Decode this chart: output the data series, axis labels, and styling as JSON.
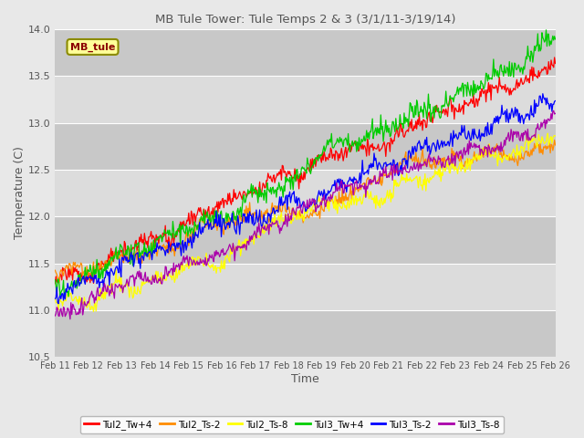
{
  "title": "MB Tule Tower: Tule Temps 2 & 3 (3/1/11-3/19/14)",
  "xlabel": "Time",
  "ylabel": "Temperature (C)",
  "ylim": [
    10.5,
    14.0
  ],
  "xlim": [
    0,
    15
  ],
  "xtick_labels": [
    "Feb 11",
    "Feb 12",
    "Feb 13",
    "Feb 14",
    "Feb 15",
    "Feb 16",
    "Feb 17",
    "Feb 18",
    "Feb 19",
    "Feb 20",
    "Feb 21",
    "Feb 22",
    "Feb 23",
    "Feb 24",
    "Feb 25",
    "Feb 26"
  ],
  "ytick_values": [
    10.5,
    11.0,
    11.5,
    12.0,
    12.5,
    13.0,
    13.5,
    14.0
  ],
  "series": [
    {
      "name": "Tul2_Tw+4",
      "color": "#FF0000"
    },
    {
      "name": "Tul2_Ts-2",
      "color": "#FF8C00"
    },
    {
      "name": "Tul2_Ts-8",
      "color": "#FFFF00"
    },
    {
      "name": "Tul3_Tw+4",
      "color": "#00CC00"
    },
    {
      "name": "Tul3_Ts-2",
      "color": "#0000FF"
    },
    {
      "name": "Tul3_Ts-8",
      "color": "#AA00AA"
    }
  ],
  "legend_box_facecolor": "#FFFF99",
  "legend_box_edgecolor": "#8B8B00",
  "legend_text": "MB_tule",
  "legend_text_color": "#8B0000",
  "fig_bgcolor": "#E8E8E8",
  "axes_bgcolor": "#E8E8E8",
  "band_light": "#DCDCDC",
  "band_dark": "#C8C8C8",
  "grid_linecolor": "#FFFFFF",
  "title_color": "#555555",
  "label_color": "#555555",
  "tick_color": "#555555",
  "n_points": 600,
  "series_params": [
    {
      "start": 11.45,
      "end": 13.5,
      "noise": 0.045,
      "seed": 1
    },
    {
      "start": 11.35,
      "end": 12.9,
      "noise": 0.04,
      "seed": 2
    },
    {
      "start": 11.05,
      "end": 12.85,
      "noise": 0.04,
      "seed": 3
    },
    {
      "start": 11.42,
      "end": 13.6,
      "noise": 0.055,
      "seed": 4
    },
    {
      "start": 11.22,
      "end": 13.2,
      "noise": 0.045,
      "seed": 5
    },
    {
      "start": 11.0,
      "end": 13.05,
      "noise": 0.04,
      "seed": 6
    }
  ]
}
